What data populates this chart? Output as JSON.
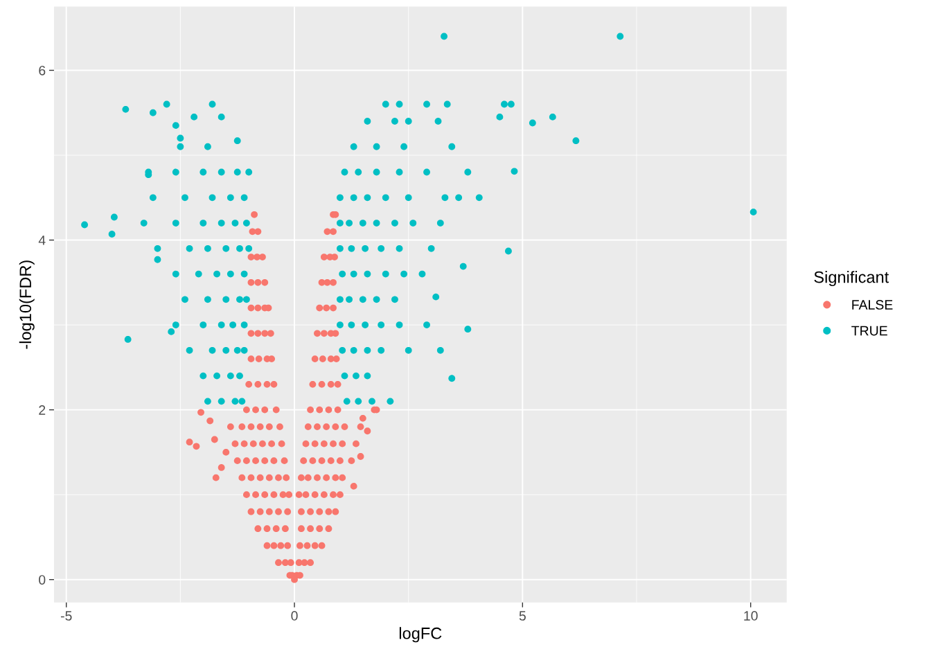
{
  "chart_data": {
    "type": "scatter",
    "xlabel": "logFC",
    "ylabel": "-log10(FDR)",
    "legend_title": "Significant",
    "legend": "right",
    "grid": true,
    "marker": "circle",
    "xlim": [
      -5.27,
      10.79
    ],
    "ylim": [
      -0.27,
      6.75
    ],
    "xticks": [
      -5,
      0,
      5,
      10
    ],
    "yticks": [
      0,
      2,
      4,
      6
    ],
    "series": [
      {
        "name": "FALSE",
        "color": "#f8766d",
        "x": [
          -0.1,
          -0.05,
          0.05,
          0.12,
          -0.35,
          -0.2,
          -0.08,
          0.1,
          0.22,
          0.35,
          -0.6,
          -0.45,
          -0.3,
          -0.15,
          0.12,
          0.28,
          0.45,
          0.6,
          -0.8,
          -0.6,
          -0.4,
          -0.2,
          0.15,
          0.35,
          0.55,
          0.75,
          -0.95,
          -0.75,
          -0.55,
          -0.35,
          -0.15,
          0.15,
          0.35,
          0.55,
          0.75,
          0.9,
          -1.05,
          -0.85,
          -0.65,
          -0.45,
          -0.25,
          -0.12,
          0.1,
          0.25,
          0.45,
          0.65,
          0.85,
          1.0,
          -1.15,
          -0.95,
          -0.75,
          -0.55,
          -0.35,
          -0.18,
          0.15,
          0.3,
          0.5,
          0.7,
          0.9,
          1.05,
          -1.25,
          -1.05,
          -0.85,
          -0.65,
          -0.45,
          -0.22,
          0.2,
          0.4,
          0.6,
          0.8,
          1.0,
          1.25,
          -1.3,
          -1.1,
          -0.9,
          -0.7,
          -0.5,
          -0.28,
          0.25,
          0.45,
          0.65,
          0.85,
          1.05,
          1.35,
          -1.4,
          -1.15,
          -0.95,
          -0.75,
          -0.55,
          -0.32,
          0.3,
          0.5,
          0.7,
          0.9,
          1.1,
          1.45,
          -1.05,
          -0.85,
          -0.65,
          -0.4,
          0.35,
          0.55,
          0.75,
          0.95,
          -1.0,
          -0.8,
          -0.6,
          -0.45,
          0.4,
          0.6,
          0.8,
          0.95,
          -0.95,
          -0.78,
          -0.6,
          -0.5,
          0.45,
          0.62,
          0.8,
          0.92,
          -0.95,
          -0.8,
          -0.65,
          -0.52,
          0.5,
          0.65,
          0.8,
          0.9,
          -0.95,
          -0.8,
          -0.65,
          -0.57,
          0.55,
          0.7,
          0.85,
          -0.95,
          -0.8,
          -0.65,
          0.6,
          0.72,
          0.85,
          -0.95,
          -0.82,
          -0.7,
          0.65,
          0.78,
          0.88,
          -0.92,
          -0.8,
          0.72,
          0.85,
          -0.88,
          0.85,
          0.9,
          -2.05,
          -2.3,
          -2.15,
          -1.72,
          -1.6,
          -1.75,
          -1.85,
          -1.5,
          1.75,
          1.8,
          1.6,
          1.45,
          1.3,
          1.5,
          0.0
        ],
        "values": [
          0.05,
          0.05,
          0.05,
          0.05,
          0.2,
          0.2,
          0.2,
          0.2,
          0.2,
          0.2,
          0.4,
          0.4,
          0.4,
          0.4,
          0.4,
          0.4,
          0.4,
          0.4,
          0.6,
          0.6,
          0.6,
          0.6,
          0.6,
          0.6,
          0.6,
          0.6,
          0.8,
          0.8,
          0.8,
          0.8,
          0.8,
          0.8,
          0.8,
          0.8,
          0.8,
          0.8,
          1.0,
          1.0,
          1.0,
          1.0,
          1.0,
          1.0,
          1.0,
          1.0,
          1.0,
          1.0,
          1.0,
          1.0,
          1.2,
          1.2,
          1.2,
          1.2,
          1.2,
          1.2,
          1.2,
          1.2,
          1.2,
          1.2,
          1.2,
          1.2,
          1.4,
          1.4,
          1.4,
          1.4,
          1.4,
          1.4,
          1.4,
          1.4,
          1.4,
          1.4,
          1.4,
          1.4,
          1.6,
          1.6,
          1.6,
          1.6,
          1.6,
          1.6,
          1.6,
          1.6,
          1.6,
          1.6,
          1.6,
          1.6,
          1.8,
          1.8,
          1.8,
          1.8,
          1.8,
          1.8,
          1.8,
          1.8,
          1.8,
          1.8,
          1.8,
          1.8,
          2.0,
          2.0,
          2.0,
          2.0,
          2.0,
          2.0,
          2.0,
          2.0,
          2.3,
          2.3,
          2.3,
          2.3,
          2.3,
          2.3,
          2.3,
          2.3,
          2.6,
          2.6,
          2.6,
          2.6,
          2.6,
          2.6,
          2.6,
          2.6,
          2.9,
          2.9,
          2.9,
          2.9,
          2.9,
          2.9,
          2.9,
          2.9,
          3.2,
          3.2,
          3.2,
          3.2,
          3.2,
          3.2,
          3.2,
          3.5,
          3.5,
          3.5,
          3.5,
          3.5,
          3.5,
          3.8,
          3.8,
          3.8,
          3.8,
          3.8,
          3.8,
          4.1,
          4.1,
          4.1,
          4.1,
          4.3,
          4.3,
          4.3,
          1.97,
          1.62,
          1.57,
          1.2,
          1.32,
          1.65,
          1.87,
          1.5,
          2.0,
          2.0,
          1.75,
          1.45,
          1.1,
          1.9,
          0.0
        ]
      },
      {
        "name": "TRUE",
        "color": "#00bfc4",
        "x": [
          3.28,
          7.14,
          10.06,
          6.17,
          5.66,
          5.22,
          4.82,
          4.69,
          4.5,
          4.6,
          4.75,
          3.8,
          3.45,
          3.7,
          3.2,
          3.1,
          -4.6,
          -4.0,
          -3.95,
          -3.7,
          -3.65,
          -3.1,
          -2.8,
          -3.2,
          -3.0,
          -2.7,
          -2.6,
          -2.5,
          -1.8,
          -2.2,
          -1.6,
          -1.25,
          -1.9,
          -1.6,
          -1.3,
          -1.15,
          -2.0,
          -1.7,
          -1.4,
          -1.2,
          -2.3,
          -1.8,
          -1.5,
          -1.25,
          -1.1,
          -2.6,
          -2.0,
          -1.6,
          -1.35,
          -1.1,
          -2.4,
          -1.9,
          -1.5,
          -1.2,
          -1.05,
          -2.6,
          -2.1,
          -1.7,
          -1.4,
          -1.1,
          -3.0,
          -2.3,
          -1.9,
          -1.5,
          -1.2,
          -1.0,
          -3.3,
          -2.6,
          -2.0,
          -1.6,
          -1.3,
          -1.05,
          -3.1,
          -2.4,
          -1.8,
          -1.4,
          -1.1,
          -3.2,
          -2.6,
          -2.0,
          -1.6,
          -1.25,
          -1.0,
          -2.5,
          -1.9,
          1.15,
          1.4,
          1.7,
          2.1,
          1.1,
          1.35,
          1.6,
          1.05,
          1.3,
          1.6,
          1.9,
          2.5,
          1.0,
          1.25,
          1.55,
          1.9,
          2.3,
          2.9,
          1.0,
          1.2,
          1.5,
          1.8,
          2.2,
          1.05,
          1.3,
          1.6,
          2.0,
          2.4,
          2.8,
          1.0,
          1.25,
          1.55,
          1.9,
          2.3,
          3.0,
          1.0,
          1.2,
          1.5,
          1.8,
          2.2,
          2.6,
          3.2,
          1.0,
          1.3,
          1.6,
          2.0,
          2.5,
          3.3,
          3.6,
          4.05,
          1.1,
          1.4,
          1.8,
          2.3,
          2.9,
          3.8,
          1.3,
          1.8,
          2.4,
          3.45,
          1.6,
          2.2,
          2.5,
          3.15,
          2.0,
          2.3,
          2.9,
          3.35
        ],
        "values": [
          6.4,
          6.4,
          4.33,
          5.17,
          5.45,
          5.38,
          4.81,
          3.87,
          5.45,
          5.6,
          5.6,
          2.95,
          2.37,
          3.69,
          2.7,
          3.33,
          4.18,
          4.07,
          4.27,
          5.54,
          2.83,
          5.5,
          5.6,
          4.77,
          3.77,
          2.92,
          5.35,
          5.2,
          5.6,
          5.45,
          5.45,
          5.17,
          2.1,
          2.1,
          2.1,
          2.1,
          2.4,
          2.4,
          2.4,
          2.4,
          2.7,
          2.7,
          2.7,
          2.7,
          2.7,
          3.0,
          3.0,
          3.0,
          3.0,
          3.0,
          3.3,
          3.3,
          3.3,
          3.3,
          3.3,
          3.6,
          3.6,
          3.6,
          3.6,
          3.6,
          3.9,
          3.9,
          3.9,
          3.9,
          3.9,
          3.9,
          4.2,
          4.2,
          4.2,
          4.2,
          4.2,
          4.2,
          4.5,
          4.5,
          4.5,
          4.5,
          4.5,
          4.8,
          4.8,
          4.8,
          4.8,
          4.8,
          4.8,
          5.1,
          5.1,
          2.1,
          2.1,
          2.1,
          2.1,
          2.4,
          2.4,
          2.4,
          2.7,
          2.7,
          2.7,
          2.7,
          2.7,
          3.0,
          3.0,
          3.0,
          3.0,
          3.0,
          3.0,
          3.3,
          3.3,
          3.3,
          3.3,
          3.3,
          3.6,
          3.6,
          3.6,
          3.6,
          3.6,
          3.6,
          3.9,
          3.9,
          3.9,
          3.9,
          3.9,
          3.9,
          4.2,
          4.2,
          4.2,
          4.2,
          4.2,
          4.2,
          4.2,
          4.5,
          4.5,
          4.5,
          4.5,
          4.5,
          4.5,
          4.5,
          4.5,
          4.8,
          4.8,
          4.8,
          4.8,
          4.8,
          4.8,
          5.1,
          5.1,
          5.1,
          5.1,
          5.4,
          5.4,
          5.4,
          5.4,
          5.6,
          5.6,
          5.6,
          5.6
        ]
      }
    ]
  }
}
